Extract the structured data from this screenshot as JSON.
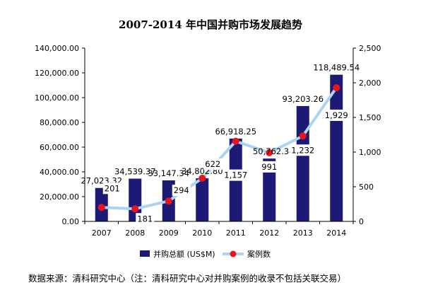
{
  "chart_data": {
    "type": "bar",
    "title": "2007-2014 年中国并购市场发展趋势",
    "categories": [
      "2007",
      "2008",
      "2009",
      "2010",
      "2011",
      "2012",
      "2013",
      "2014"
    ],
    "series": [
      {
        "name": "并购总额 (US$M)",
        "kind": "bar",
        "axis": "left",
        "color": "#1c1a75",
        "values": [
          27023.32,
          34539.37,
          33147.34,
          34802.8,
          66918.25,
          50762.34,
          93203.26,
          118489.54
        ],
        "labels": [
          "27,023.32",
          "34,539.37",
          "33,147.34",
          "34,802.80",
          "66,918.25",
          "50,762.34",
          "93,203.26",
          "118,489.54"
        ]
      },
      {
        "name": "案例数",
        "kind": "line",
        "axis": "right",
        "line_color": "#aad4f2",
        "marker_color": "#e8161b",
        "values": [
          201,
          181,
          294,
          622,
          1157,
          991,
          1232,
          1929
        ],
        "labels": [
          "201",
          "181",
          "294",
          "622",
          "1,157",
          "991",
          "1,232",
          "1,929"
        ]
      }
    ],
    "y_left": {
      "ylim": [
        0,
        140000
      ],
      "ticks": [
        0,
        20000,
        40000,
        60000,
        80000,
        100000,
        120000,
        140000
      ],
      "tick_labels": [
        "0.00",
        "20,000.00",
        "40,000.00",
        "60,000.00",
        "80,000.00",
        "100,000.00",
        "120,000.00",
        "140,000.00"
      ]
    },
    "y_right": {
      "ylim": [
        0,
        2500
      ],
      "ticks": [
        0,
        500,
        1000,
        1500,
        2000,
        2500
      ],
      "tick_labels": [
        "0",
        "500",
        "1,000",
        "1,500",
        "2,000",
        "2,500"
      ]
    },
    "grid": false,
    "legend": "bottom"
  },
  "source_note": "数据来源：清科研究中心（注：清科研究中心对并购案例的收录不包括关联交易）"
}
